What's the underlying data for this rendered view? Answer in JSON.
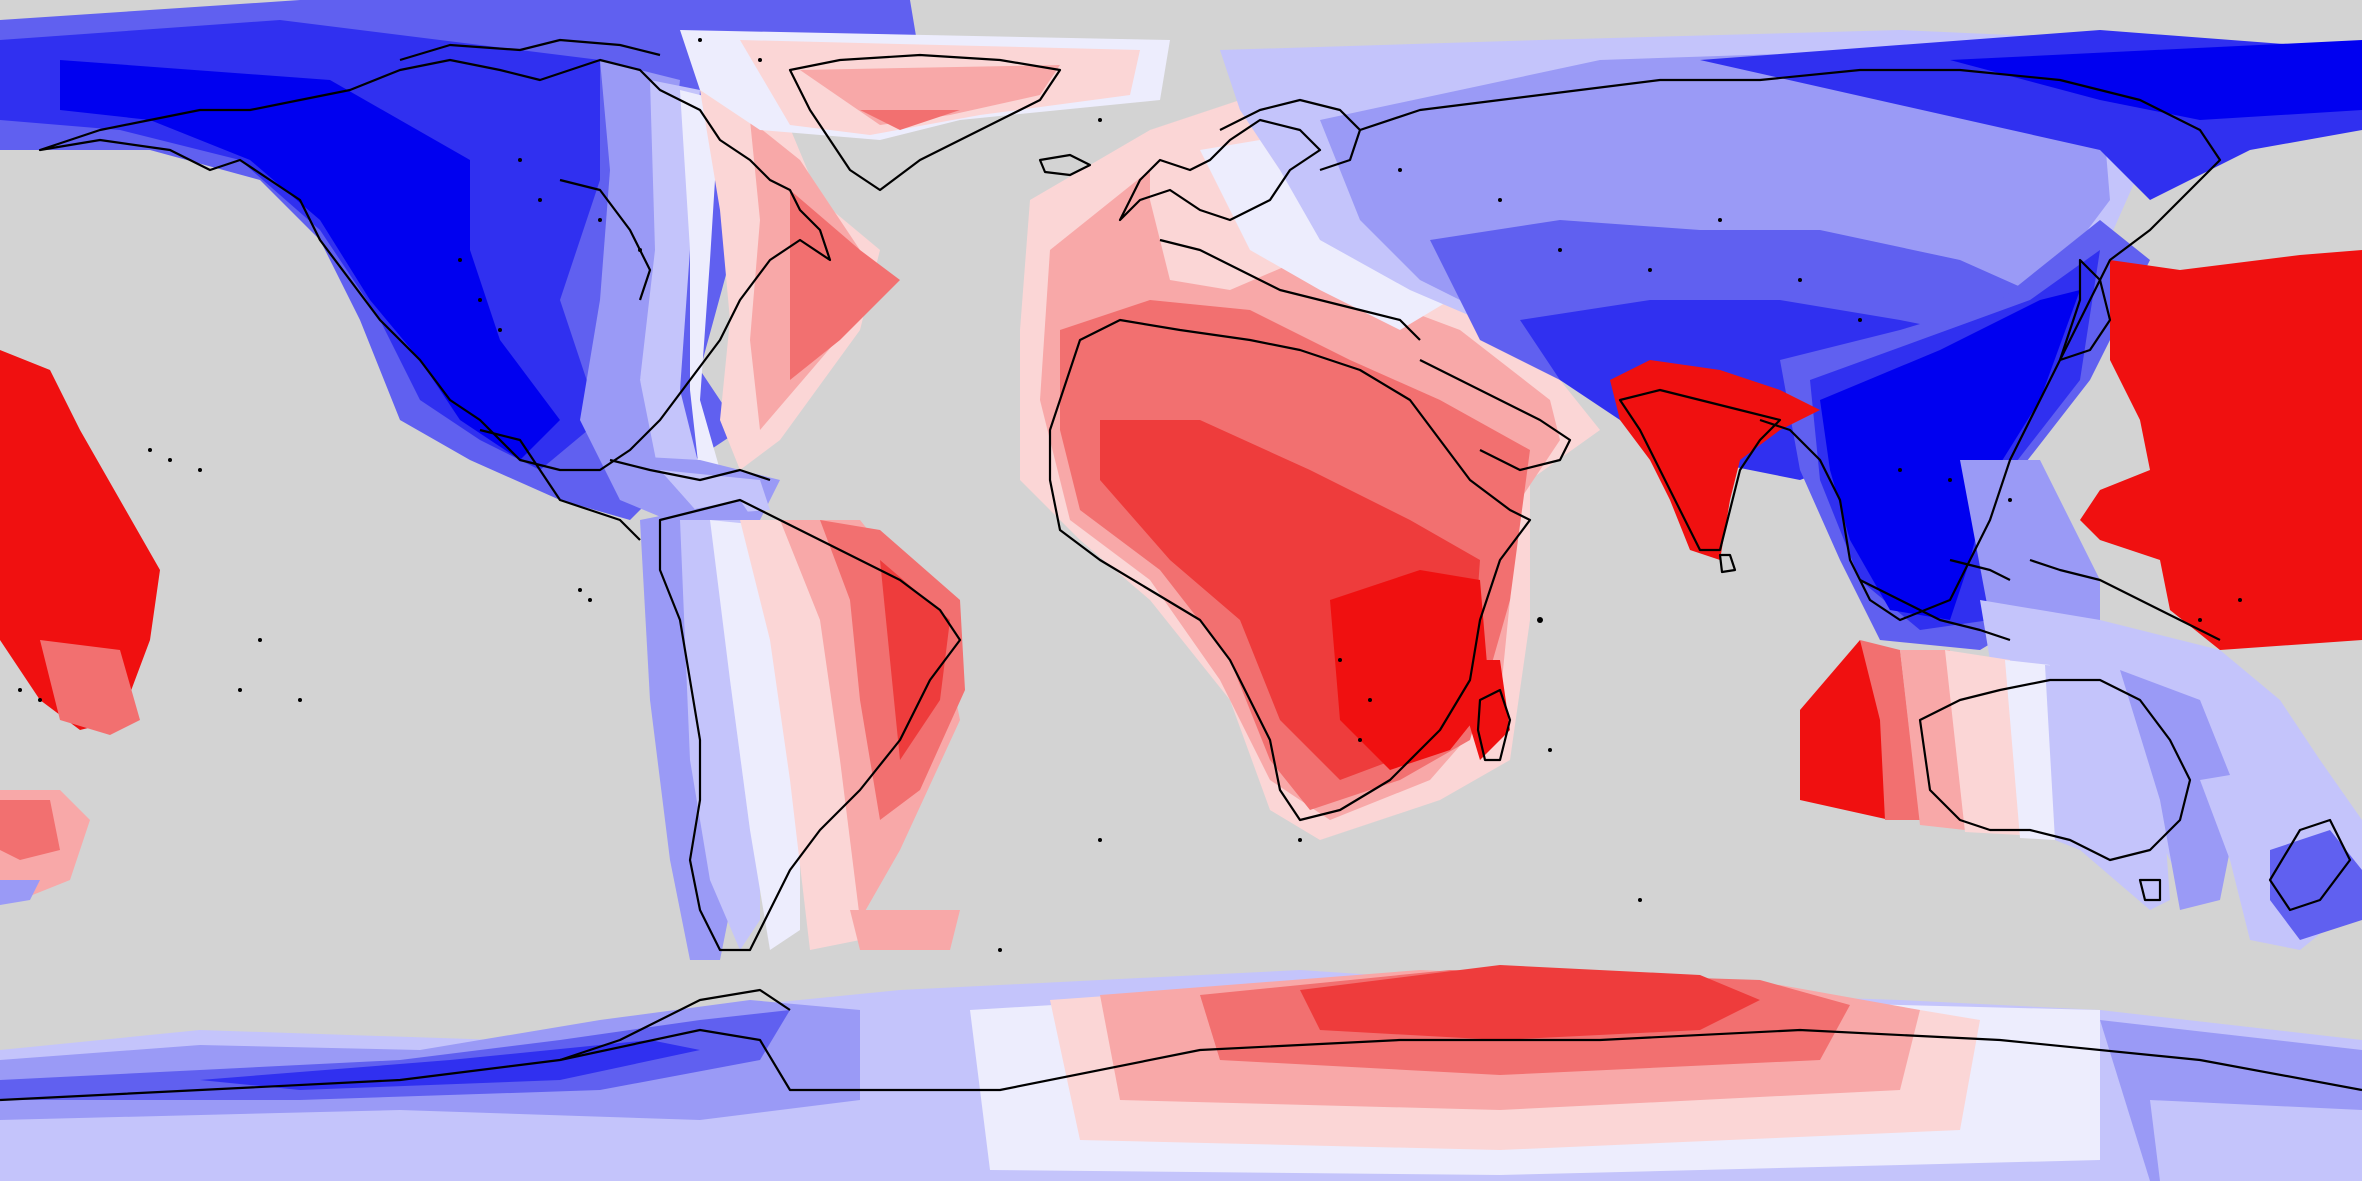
{
  "map": {
    "projection": "equirectangular",
    "background_color": "#d3d3d3",
    "coastline_color": "#000000",
    "palette": {
      "deep_blue": "#0000f0",
      "blue": "#3030f0",
      "mid_blue": "#6060f0",
      "light_blue": "#9a9af6",
      "pale_blue": "#c4c4fb",
      "near_white": "#ededfd",
      "pale_red": "#fbd6d6",
      "light_red": "#f8a8a8",
      "mid_red": "#f27070",
      "red": "#ee3c3c",
      "deep_red": "#f01010"
    },
    "regions": [
      {
        "name": "north-america-field",
        "color_key": "blue"
      },
      {
        "name": "greenland-field",
        "color_key": "light_red"
      },
      {
        "name": "north-atlantic-field",
        "color_key": "mid_red"
      },
      {
        "name": "south-america-field",
        "color_key": "light_red"
      },
      {
        "name": "africa-field",
        "color_key": "red"
      },
      {
        "name": "india-field",
        "color_key": "deep_red"
      },
      {
        "name": "eurasia-field",
        "color_key": "light_blue"
      },
      {
        "name": "east-asia-field",
        "color_key": "deep_blue"
      },
      {
        "name": "west-pacific-field",
        "color_key": "deep_red"
      },
      {
        "name": "east-pacific-field",
        "color_key": "deep_red"
      },
      {
        "name": "australia-field",
        "color_key": "pale_blue"
      },
      {
        "name": "antarctica-field",
        "color_key": "light_red"
      }
    ]
  }
}
